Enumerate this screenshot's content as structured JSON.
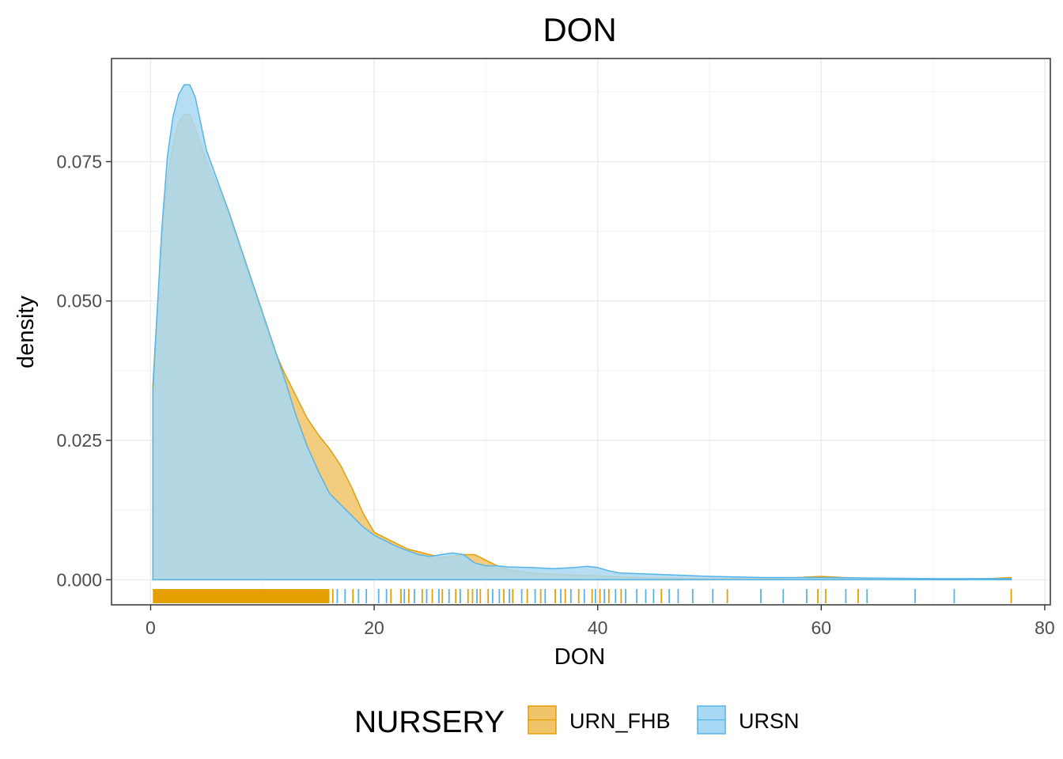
{
  "chart_data": {
    "type": "area",
    "title": "DON",
    "xlabel": "DON",
    "ylabel": "density",
    "xlim": [
      -3.5,
      80.5
    ],
    "ylim": [
      -0.0045,
      0.0935
    ],
    "x_ticks": [
      0,
      20,
      40,
      60,
      80
    ],
    "x_tick_labels": [
      "0",
      "20",
      "40",
      "60",
      "80"
    ],
    "y_ticks": [
      0.0,
      0.025,
      0.05,
      0.075
    ],
    "y_tick_labels": [
      "0.000",
      "0.025",
      "0.050",
      "0.075"
    ],
    "grid": true,
    "legend": {
      "title": "NURSERY",
      "position": "bottom"
    },
    "series": [
      {
        "name": "URN_FHB",
        "color": "#E69F00",
        "fill": "#F0C46A",
        "x": [
          0.2,
          0.5,
          1,
          1.5,
          2,
          2.5,
          3,
          3.5,
          4,
          5,
          6,
          7,
          8,
          9,
          10,
          11,
          12,
          13,
          14,
          15,
          16,
          17,
          18,
          19,
          20,
          21,
          22,
          23,
          24,
          25,
          26,
          27,
          28,
          29,
          30,
          31,
          32,
          34,
          36,
          38,
          40,
          42,
          45,
          50,
          55,
          58,
          60,
          62,
          65,
          70,
          75,
          77
        ],
        "density": [
          0.035,
          0.045,
          0.061,
          0.072,
          0.078,
          0.082,
          0.0835,
          0.0835,
          0.081,
          0.075,
          0.0705,
          0.0655,
          0.0595,
          0.0535,
          0.0475,
          0.0415,
          0.037,
          0.033,
          0.029,
          0.026,
          0.0235,
          0.0205,
          0.0165,
          0.012,
          0.0085,
          0.0075,
          0.0065,
          0.0055,
          0.005,
          0.0045,
          0.004,
          0.0042,
          0.0045,
          0.0045,
          0.0035,
          0.0025,
          0.0018,
          0.0012,
          0.001,
          0.0008,
          0.0007,
          0.0005,
          0.0003,
          0.0002,
          0.0002,
          0.0004,
          0.0006,
          0.0004,
          0.0002,
          0.0001,
          0.0002,
          0.0004
        ]
      },
      {
        "name": "URSN",
        "color": "#56B4E9",
        "fill": "#A8D8F3",
        "x": [
          0.2,
          0.5,
          1,
          1.5,
          2,
          2.5,
          3,
          3.5,
          4,
          5,
          6,
          7,
          8,
          9,
          10,
          11,
          12,
          13,
          14,
          15,
          16,
          17,
          18,
          19,
          20,
          21,
          22,
          23,
          24,
          25,
          26,
          27,
          28,
          29,
          30,
          31,
          32,
          34,
          36,
          38,
          39,
          40,
          41,
          42,
          45,
          50,
          55,
          60,
          65,
          70,
          75,
          77
        ],
        "density": [
          0.034,
          0.045,
          0.063,
          0.076,
          0.083,
          0.087,
          0.0888,
          0.0888,
          0.0865,
          0.077,
          0.0715,
          0.066,
          0.06,
          0.054,
          0.048,
          0.042,
          0.036,
          0.0295,
          0.024,
          0.0195,
          0.0155,
          0.0135,
          0.0115,
          0.0095,
          0.008,
          0.007,
          0.006,
          0.0052,
          0.0045,
          0.0042,
          0.0045,
          0.0048,
          0.0045,
          0.003,
          0.0025,
          0.0025,
          0.0023,
          0.0022,
          0.002,
          0.0022,
          0.0024,
          0.0022,
          0.0016,
          0.0012,
          0.001,
          0.0006,
          0.0004,
          0.0004,
          0.0003,
          0.0002,
          0.0002,
          0.0002
        ]
      }
    ],
    "rug": {
      "URN_FHB": [
        16.3,
        18.1,
        21.5,
        22.4,
        23.1,
        24.3,
        25.2,
        26.1,
        27.3,
        28.4,
        28.8,
        29.5,
        30.2,
        31.6,
        32.4,
        33.7,
        34.9,
        36.2,
        37.1,
        38.3,
        39.5,
        40.2,
        41.0,
        42.1,
        45.7,
        51.6,
        59.7,
        60.4,
        63.3,
        77.0
      ],
      "URSN": [
        16.7,
        17.4,
        18.6,
        19.3,
        20.4,
        21.1,
        22.7,
        23.6,
        24.7,
        25.8,
        26.7,
        27.7,
        29.2,
        30.6,
        31.2,
        32.1,
        33.2,
        34.4,
        35.3,
        36.7,
        37.6,
        38.8,
        39.8,
        40.6,
        41.6,
        42.5,
        43.5,
        44.3,
        45.0,
        46.4,
        47.2,
        48.5,
        50.3,
        54.6,
        56.6,
        58.7,
        62.2,
        64.1,
        68.4,
        71.9
      ]
    }
  }
}
